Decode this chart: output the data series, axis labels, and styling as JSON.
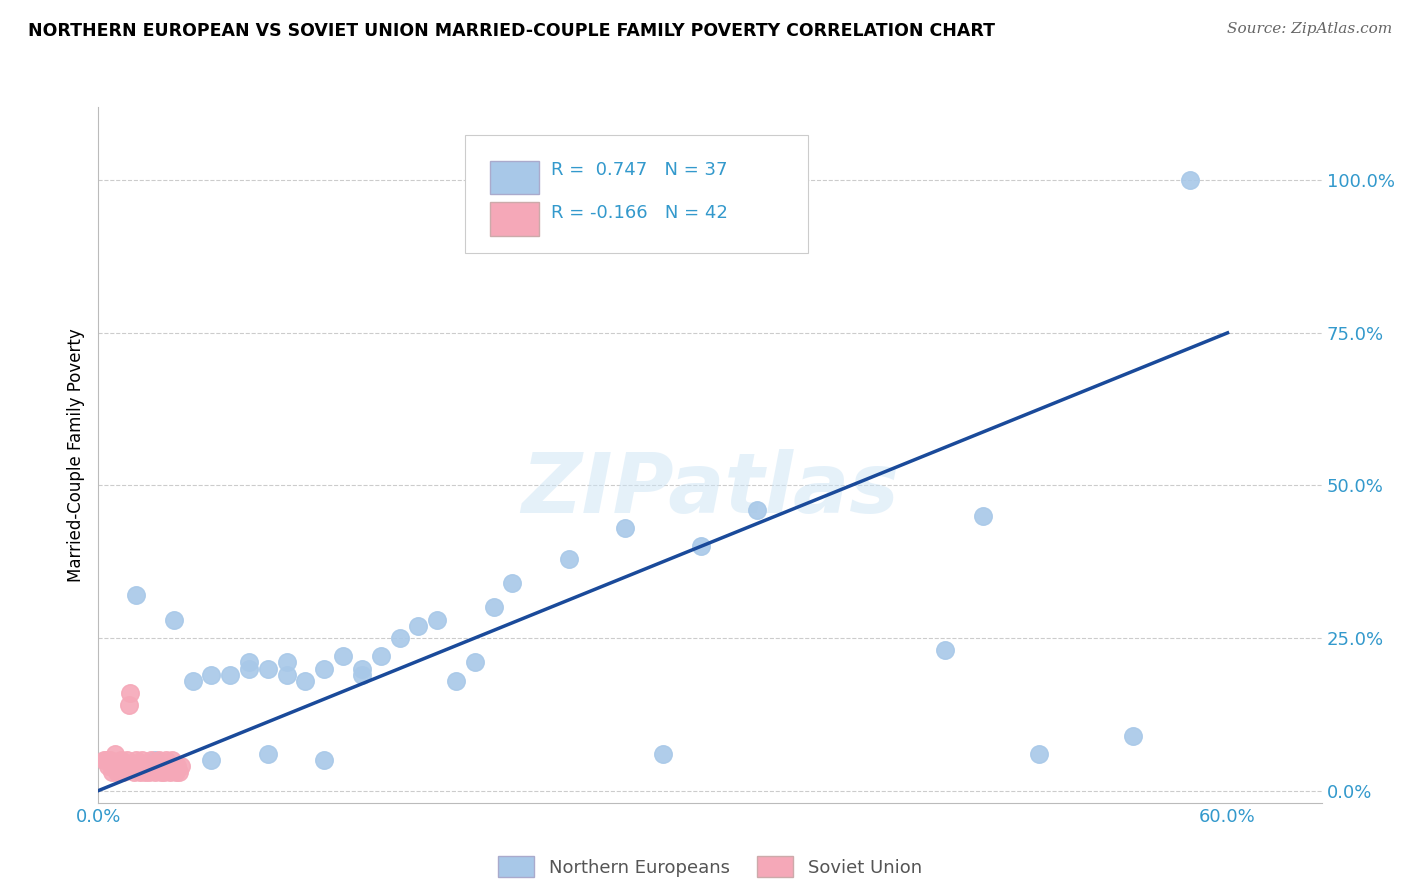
{
  "title": "NORTHERN EUROPEAN VS SOVIET UNION MARRIED-COUPLE FAMILY POVERTY CORRELATION CHART",
  "source": "Source: ZipAtlas.com",
  "ylabel": "Married-Couple Family Poverty",
  "xlim": [
    0.0,
    0.65
  ],
  "ylim": [
    -0.02,
    1.12
  ],
  "ytick_labels": [
    "0.0%",
    "25.0%",
    "50.0%",
    "75.0%",
    "100.0%"
  ],
  "ytick_values": [
    0.0,
    0.25,
    0.5,
    0.75,
    1.0
  ],
  "xtick_labels": [
    "0.0%",
    "60.0%"
  ],
  "xtick_values": [
    0.0,
    0.6
  ],
  "legend_label1": "Northern Europeans",
  "legend_label2": "Soviet Union",
  "R1": 0.747,
  "N1": 37,
  "R2": -0.166,
  "N2": 42,
  "color1": "#a8c8e8",
  "color2": "#f5a8b8",
  "line_color": "#1a4a9a",
  "line_x0": 0.0,
  "line_y0": 0.0,
  "line_x1": 0.6,
  "line_y1": 0.75,
  "blue_scatter_x": [
    0.02,
    0.04,
    0.05,
    0.06,
    0.07,
    0.08,
    0.08,
    0.09,
    0.1,
    0.1,
    0.11,
    0.12,
    0.13,
    0.14,
    0.14,
    0.15,
    0.16,
    0.17,
    0.18,
    0.19,
    0.2,
    0.21,
    0.22,
    0.25,
    0.28,
    0.3,
    0.32,
    0.35,
    0.45,
    0.47,
    0.5,
    0.55,
    0.58,
    0.03,
    0.06,
    0.09,
    0.12
  ],
  "blue_scatter_y": [
    0.32,
    0.28,
    0.18,
    0.19,
    0.19,
    0.2,
    0.21,
    0.2,
    0.19,
    0.21,
    0.18,
    0.2,
    0.22,
    0.2,
    0.19,
    0.22,
    0.25,
    0.27,
    0.28,
    0.18,
    0.21,
    0.3,
    0.34,
    0.38,
    0.43,
    0.06,
    0.4,
    0.46,
    0.23,
    0.45,
    0.06,
    0.09,
    1.0,
    0.05,
    0.05,
    0.06,
    0.05
  ],
  "pink_scatter_x": [
    0.003,
    0.004,
    0.005,
    0.006,
    0.007,
    0.008,
    0.009,
    0.01,
    0.011,
    0.012,
    0.013,
    0.014,
    0.015,
    0.016,
    0.017,
    0.018,
    0.019,
    0.02,
    0.021,
    0.022,
    0.023,
    0.024,
    0.025,
    0.026,
    0.027,
    0.028,
    0.029,
    0.03,
    0.031,
    0.032,
    0.033,
    0.034,
    0.035,
    0.036,
    0.037,
    0.038,
    0.039,
    0.04,
    0.041,
    0.042,
    0.043,
    0.044
  ],
  "pink_scatter_y": [
    0.05,
    0.05,
    0.04,
    0.05,
    0.03,
    0.04,
    0.06,
    0.03,
    0.04,
    0.05,
    0.03,
    0.04,
    0.05,
    0.14,
    0.16,
    0.04,
    0.03,
    0.05,
    0.04,
    0.03,
    0.05,
    0.04,
    0.03,
    0.04,
    0.03,
    0.05,
    0.04,
    0.03,
    0.04,
    0.05,
    0.03,
    0.04,
    0.03,
    0.05,
    0.04,
    0.03,
    0.05,
    0.04,
    0.03,
    0.04,
    0.03,
    0.04
  ]
}
